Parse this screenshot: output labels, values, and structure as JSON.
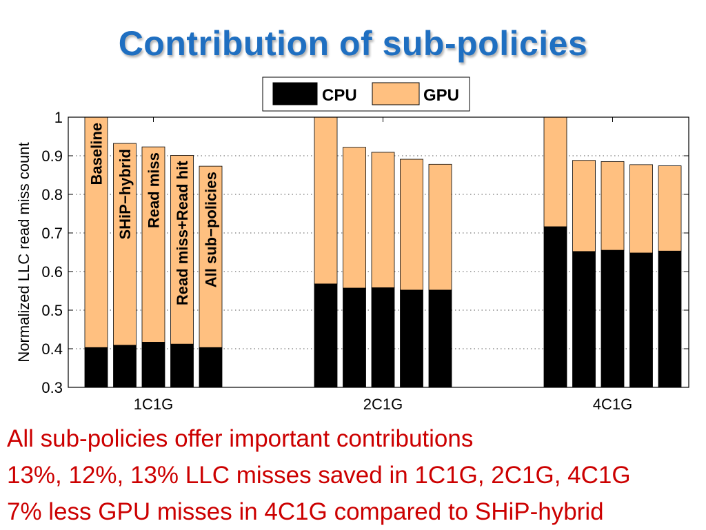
{
  "slide": {
    "title": "Contribution of sub-policies",
    "bullets": [
      "All sub-policies offer important contributions",
      "13%, 12%, 13% LLC misses saved in 1C1G, 2C1G, 4C1G",
      "7% less GPU misses in 4C1G compared to SHiP-hybrid"
    ]
  },
  "colors": {
    "cpu": "#000000",
    "gpu": "#ffc080",
    "title": "#1f6fc1",
    "bullets": "#cc0000"
  },
  "chart_data": {
    "type": "bar",
    "stacked": true,
    "title": "",
    "xlabel": "",
    "ylabel": "Normalized LLC read miss count",
    "ylim": [
      0.3,
      1.0
    ],
    "yticks": [
      "0.3",
      "0.4",
      "0.5",
      "0.6",
      "0.7",
      "0.8",
      "0.9",
      "1"
    ],
    "grid": true,
    "legend": [
      "CPU",
      "GPU"
    ],
    "legend_position": "top-center",
    "groups": [
      "1C1G",
      "2C1G",
      "4C1G"
    ],
    "policies": [
      "Baseline",
      "SHiP−hybrid",
      "Read miss",
      "Read miss+Read hit",
      "All sub−policies"
    ],
    "series": [
      {
        "name": "CPU",
        "values": [
          [
            0.403,
            0.409,
            0.417,
            0.412,
            0.403
          ],
          [
            0.568,
            0.557,
            0.558,
            0.552,
            0.552
          ],
          [
            0.716,
            0.652,
            0.655,
            0.648,
            0.653
          ]
        ]
      },
      {
        "name": "GPU",
        "values": [
          [
            0.597,
            0.523,
            0.506,
            0.489,
            0.47
          ],
          [
            0.432,
            0.365,
            0.351,
            0.339,
            0.326
          ],
          [
            0.284,
            0.236,
            0.23,
            0.229,
            0.221
          ]
        ]
      }
    ],
    "totals": [
      [
        1.0,
        0.932,
        0.923,
        0.901,
        0.873
      ],
      [
        1.0,
        0.922,
        0.909,
        0.891,
        0.878
      ],
      [
        1.0,
        0.888,
        0.885,
        0.877,
        0.874
      ]
    ]
  }
}
